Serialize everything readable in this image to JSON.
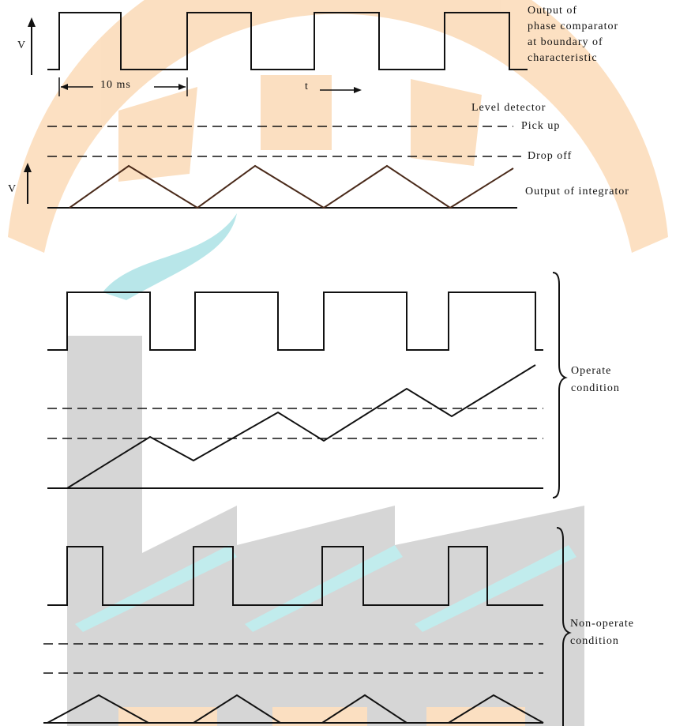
{
  "top": {
    "axis_label": "V",
    "interval_label": "10 ms",
    "time_label": "t",
    "caption": [
      "Output of",
      "phase comparator",
      "at boundary of",
      "characteristic"
    ]
  },
  "levels": {
    "title": "Level detector",
    "pick_up": "Pick up",
    "drop_off": "Drop off",
    "integrator_label": "Output of integrator",
    "axis_label": "V"
  },
  "operate": {
    "caption": [
      "Operate",
      "condition"
    ]
  },
  "non_operate": {
    "caption": [
      "Non-operate",
      "condition"
    ]
  }
}
